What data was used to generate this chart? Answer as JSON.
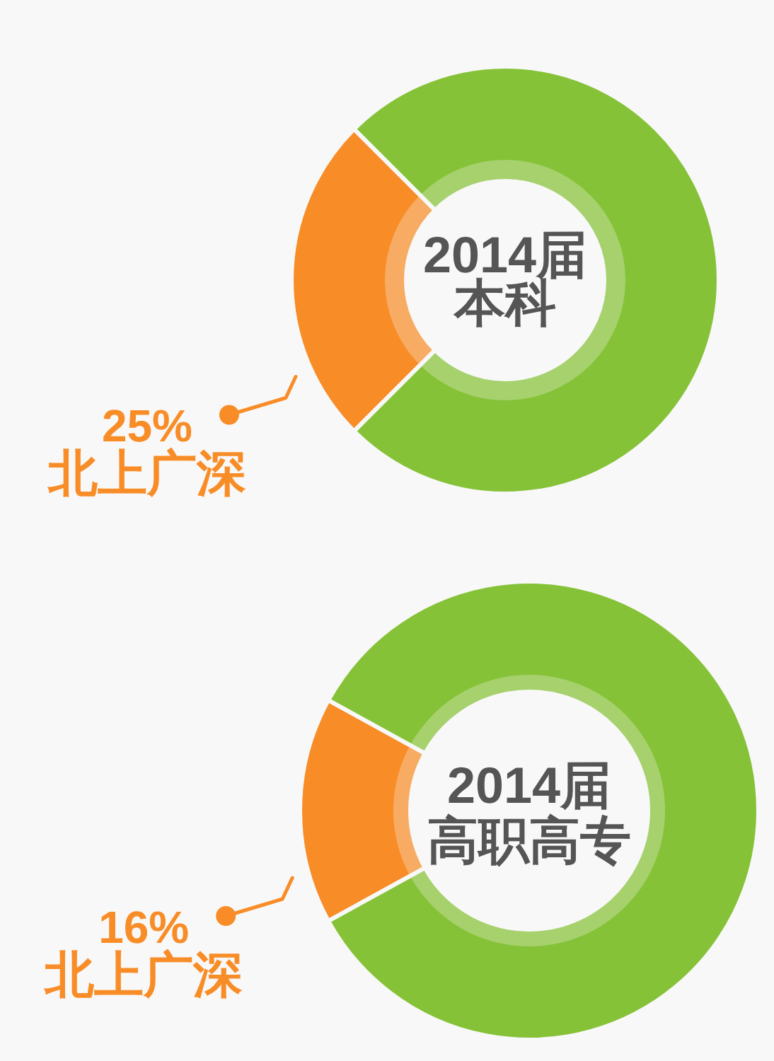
{
  "chart_data": [
    {
      "type": "donut",
      "title": "2014届",
      "subtitle": "本科",
      "categories": [
        "北上广深",
        null
      ],
      "values": [
        25,
        75
      ],
      "colors": [
        "#f88d28",
        "#86c238"
      ],
      "value_labels": [
        "25%",
        null
      ]
    },
    {
      "type": "donut",
      "title": "2014届",
      "subtitle": "高职高专",
      "categories": [
        "北上广深",
        null
      ],
      "values": [
        16,
        84
      ],
      "colors": [
        "#f88d28",
        "#86c238"
      ],
      "value_labels": [
        "16%",
        null
      ]
    }
  ]
}
